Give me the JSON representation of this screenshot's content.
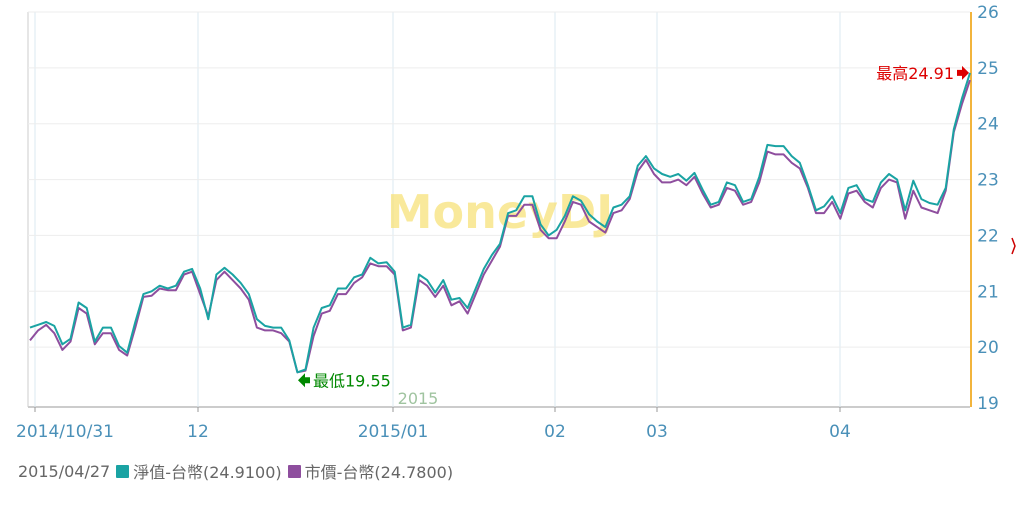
{
  "chart_data": {
    "type": "line",
    "watermark": "MoneyDJ",
    "x_ticks": [
      "2014/10/31",
      "12",
      "2015/01",
      "02",
      "03",
      "04"
    ],
    "sub_label": "2015",
    "y_ticks": [
      "19",
      "20",
      "21",
      "22",
      "23",
      "24",
      "25",
      "26"
    ],
    "ylim": [
      19,
      26
    ],
    "grid": true,
    "annotations": {
      "high": {
        "text": "最高24.91",
        "value": 24.91,
        "color": "#dd0000"
      },
      "low": {
        "text": "最低19.55",
        "value": 19.55,
        "color": "#008800"
      }
    },
    "legend": {
      "date": "2015/04/27",
      "items": [
        {
          "label": "淨值-台幣(24.9100)",
          "color": "#1aa3a3"
        },
        {
          "label": "市價-台幣(24.7800)",
          "color": "#8e4e9e"
        }
      ]
    },
    "series": [
      {
        "name": "淨值-台幣",
        "color": "#1aa3a3",
        "values": [
          20.35,
          20.4,
          20.45,
          20.38,
          20.05,
          20.15,
          20.8,
          20.7,
          20.1,
          20.35,
          20.35,
          20.02,
          19.9,
          20.45,
          20.95,
          21.0,
          21.1,
          21.05,
          21.1,
          21.35,
          21.4,
          21.05,
          20.5,
          21.3,
          21.42,
          21.3,
          21.15,
          20.95,
          20.5,
          20.38,
          20.35,
          20.35,
          20.12,
          19.55,
          19.6,
          20.35,
          20.7,
          20.75,
          21.05,
          21.05,
          21.25,
          21.3,
          21.6,
          21.5,
          21.52,
          21.35,
          20.35,
          20.4,
          21.3,
          21.2,
          20.98,
          21.2,
          20.85,
          20.88,
          20.7,
          21.05,
          21.4,
          21.65,
          21.85,
          22.4,
          22.45,
          22.7,
          22.7,
          22.2,
          22.0,
          22.1,
          22.35,
          22.7,
          22.62,
          22.38,
          22.25,
          22.15,
          22.5,
          22.55,
          22.7,
          23.25,
          23.42,
          23.2,
          23.1,
          23.05,
          23.1,
          22.98,
          23.12,
          22.82,
          22.55,
          22.6,
          22.95,
          22.9,
          22.6,
          22.65,
          23.05,
          23.62,
          23.6,
          23.6,
          23.42,
          23.3,
          22.9,
          22.45,
          22.52,
          22.7,
          22.4,
          22.85,
          22.9,
          22.65,
          22.6,
          22.95,
          23.1,
          23.0,
          22.45,
          22.98,
          22.65,
          22.58,
          22.55,
          22.85,
          23.9,
          24.45,
          24.91
        ]
      },
      {
        "name": "市價-台幣",
        "color": "#8e4e9e",
        "values": [
          20.12,
          20.3,
          20.4,
          20.25,
          19.95,
          20.1,
          20.7,
          20.6,
          20.05,
          20.25,
          20.25,
          19.95,
          19.85,
          20.35,
          20.9,
          20.92,
          21.05,
          21.02,
          21.02,
          21.3,
          21.35,
          20.95,
          20.55,
          21.2,
          21.35,
          21.2,
          21.05,
          20.85,
          20.35,
          20.3,
          20.3,
          20.25,
          20.1,
          19.55,
          19.58,
          20.2,
          20.6,
          20.65,
          20.95,
          20.95,
          21.15,
          21.25,
          21.5,
          21.45,
          21.45,
          21.3,
          20.3,
          20.35,
          21.2,
          21.1,
          20.9,
          21.1,
          20.75,
          20.82,
          20.6,
          20.95,
          21.3,
          21.55,
          21.8,
          22.35,
          22.35,
          22.55,
          22.55,
          22.1,
          21.95,
          21.95,
          22.25,
          22.6,
          22.55,
          22.25,
          22.15,
          22.05,
          22.4,
          22.45,
          22.65,
          23.15,
          23.35,
          23.1,
          22.95,
          22.95,
          23.0,
          22.9,
          23.05,
          22.75,
          22.5,
          22.55,
          22.85,
          22.8,
          22.55,
          22.6,
          22.95,
          23.5,
          23.45,
          23.45,
          23.3,
          23.2,
          22.85,
          22.4,
          22.4,
          22.6,
          22.3,
          22.75,
          22.8,
          22.6,
          22.5,
          22.85,
          23.0,
          22.95,
          22.3,
          22.8,
          22.5,
          22.45,
          22.4,
          22.8,
          23.85,
          24.35,
          24.78
        ]
      }
    ]
  }
}
